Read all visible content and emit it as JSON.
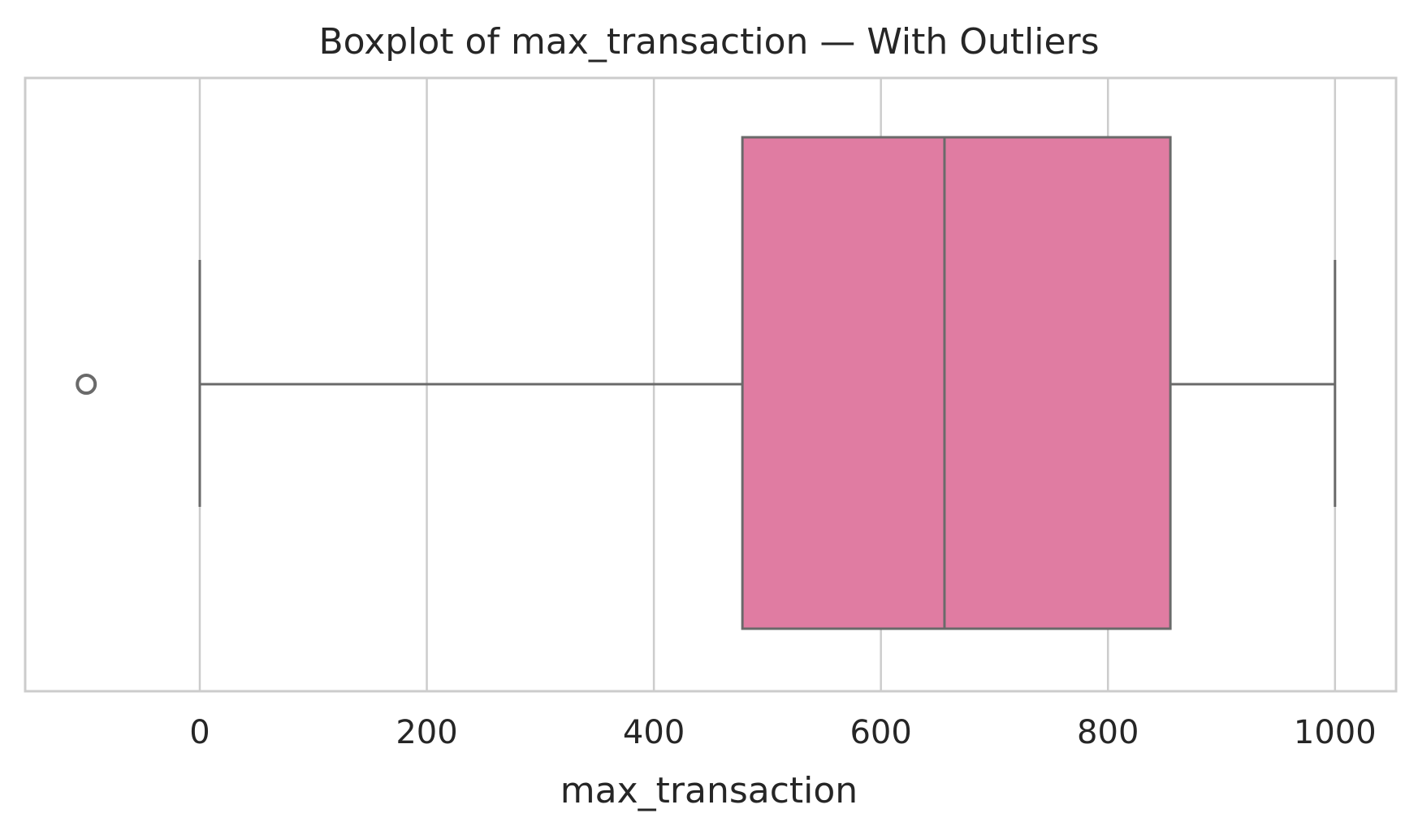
{
  "chart_data": {
    "type": "boxplot",
    "title": "Boxplot of max_transaction — With Outliers",
    "xlabel": "max_transaction",
    "ylabel": "",
    "xlim": [
      -153.8,
      1053.8
    ],
    "xticks": [
      0,
      200,
      400,
      600,
      800,
      1000
    ],
    "xtick_labels": [
      "0",
      "200",
      "400",
      "600",
      "800",
      "1000"
    ],
    "grid": true,
    "orientation": "horizontal",
    "box": {
      "whisker_low": 0,
      "q1": 478,
      "median": 656,
      "q3": 855,
      "whisker_high": 1000,
      "fill_color": "#e07ca2",
      "line_color": "#6a6a6a"
    },
    "outliers": [
      -100
    ]
  }
}
